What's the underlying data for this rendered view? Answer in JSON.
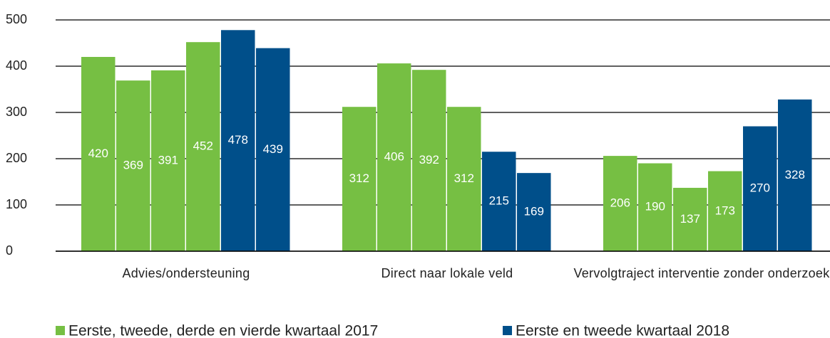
{
  "chart_data": {
    "type": "bar",
    "categories": [
      "Advies/ondersteuning",
      "Direct naar lokale veld",
      "Vervolgtraject interventie zonder onderzoek"
    ],
    "series": [
      {
        "name": "Eerste, tweede, derde en vierde kwartaal 2017",
        "color": "#76bf43",
        "values": [
          [
            420,
            369,
            391,
            452
          ],
          [
            312,
            406,
            392,
            312
          ],
          [
            206,
            190,
            137,
            173
          ]
        ]
      },
      {
        "name": "Eerste en tweede kwartaal 2018",
        "color": "#004f8a",
        "values": [
          [
            478,
            439
          ],
          [
            215,
            169
          ],
          [
            270,
            328
          ]
        ]
      }
    ],
    "ylim": [
      0,
      500
    ],
    "yticks": [
      0,
      100,
      200,
      300,
      400,
      500
    ],
    "grid": true,
    "legend": "bottom"
  }
}
